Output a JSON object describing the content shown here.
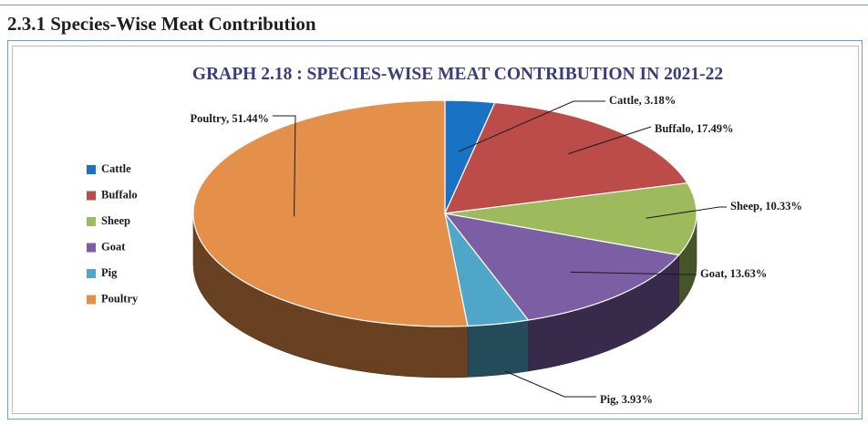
{
  "section": {
    "heading": "2.3.1 Species-Wise Meat Contribution"
  },
  "chart_data": {
    "type": "pie",
    "title": "GRAPH 2.18 : SPECIES-WISE MEAT CONTRIBUTION IN 2021-22",
    "style": "3d-perspective",
    "legend_position": "left",
    "categories": [
      "Cattle",
      "Buffalo",
      "Sheep",
      "Goat",
      "Pig",
      "Poultry"
    ],
    "values": [
      3.18,
      17.49,
      10.33,
      13.63,
      3.93,
      51.44
    ],
    "data_labels": [
      "Cattle, 3.18%",
      "Buffalo, 17.49%",
      "Sheep, 10.33%",
      "Goat, 13.63%",
      "Pig, 3.93%",
      "Poultry, 51.44%"
    ],
    "colors": [
      "#1a72c4",
      "#bb4c4a",
      "#9dbb5c",
      "#7b5ea4",
      "#4fa6c9",
      "#e5904a"
    ]
  }
}
